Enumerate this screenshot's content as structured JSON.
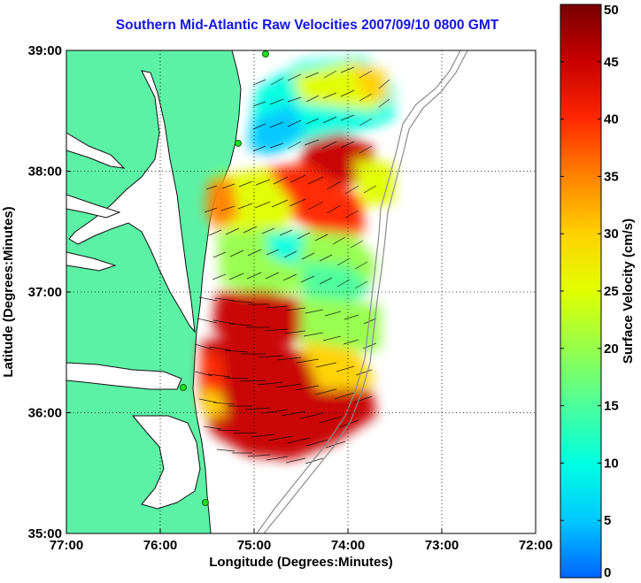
{
  "title": "Southern Mid-Atlantic Raw Velocities 2007/09/10 0800 GMT",
  "map": {
    "xlabel": "Longitude (Degrees:Minutes)",
    "ylabel": "Latitude (Degrees:Minutes)",
    "lon_range": [
      -77,
      -72
    ],
    "lat_range": [
      35,
      39
    ],
    "x_ticks": [
      {
        "value": -77,
        "label": "77:00"
      },
      {
        "value": -76,
        "label": "76:00"
      },
      {
        "value": -75,
        "label": "75:00"
      },
      {
        "value": -74,
        "label": "74:00"
      },
      {
        "value": -73,
        "label": "73:00"
      },
      {
        "value": -72,
        "label": "72:00"
      }
    ],
    "y_ticks": [
      {
        "value": 39,
        "label": "39:00"
      },
      {
        "value": 38,
        "label": "38:00"
      },
      {
        "value": 37,
        "label": "37:00"
      },
      {
        "value": 36,
        "label": "36:00"
      },
      {
        "value": 35,
        "label": "35:00"
      }
    ],
    "grid": "dotted",
    "land_color": "#5cf2a6",
    "coastline_color": "#000000",
    "bathymetry_color": "#8c8c8c",
    "station_color": "#22dd22",
    "vector_color": "#000000"
  },
  "colorbar": {
    "label": "Surface Velocity (cm/s)",
    "range": [
      0,
      50
    ],
    "ticks": [
      {
        "value": 0,
        "label": "0"
      },
      {
        "value": 5,
        "label": "5"
      },
      {
        "value": 10,
        "label": "10"
      },
      {
        "value": 15,
        "label": "15"
      },
      {
        "value": 20,
        "label": "20"
      },
      {
        "value": 25,
        "label": "25"
      },
      {
        "value": 30,
        "label": "30"
      },
      {
        "value": 35,
        "label": "35"
      },
      {
        "value": 40,
        "label": "40"
      },
      {
        "value": 45,
        "label": "45"
      },
      {
        "value": 50,
        "label": "50"
      }
    ],
    "colormap": [
      "#0064ff",
      "#00c8ff",
      "#00ffe1",
      "#4bff9b",
      "#96ff4b",
      "#e1ff00",
      "#ffd200",
      "#ff8200",
      "#ff2800",
      "#c80000",
      "#780000"
    ]
  }
}
